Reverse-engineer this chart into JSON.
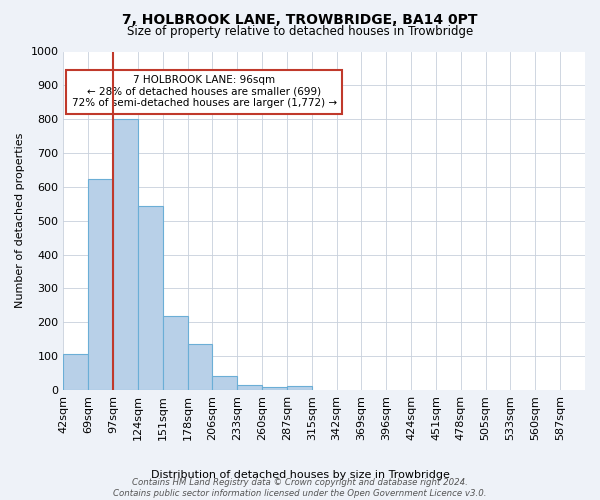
{
  "title": "7, HOLBROOK LANE, TROWBRIDGE, BA14 0PT",
  "subtitle": "Size of property relative to detached houses in Trowbridge",
  "xlabel": "Distribution of detached houses by size in Trowbridge",
  "ylabel": "Number of detached properties",
  "bar_values": [
    105,
    622,
    800,
    543,
    220,
    135,
    42,
    16,
    10,
    12
  ],
  "categories": [
    "42sqm",
    "69sqm",
    "97sqm",
    "124sqm",
    "151sqm",
    "178sqm",
    "206sqm",
    "233sqm",
    "260sqm",
    "287sqm",
    "315sqm",
    "342sqm",
    "369sqm",
    "396sqm",
    "424sqm",
    "451sqm",
    "478sqm",
    "505sqm",
    "533sqm",
    "560sqm",
    "587sqm"
  ],
  "bar_color": "#b8d0e8",
  "bar_edge_color": "#6baed6",
  "vline_color": "#c0392b",
  "annotation_text": "7 HOLBROOK LANE: 96sqm\n← 28% of detached houses are smaller (699)\n72% of semi-detached houses are larger (1,772) →",
  "annotation_box_color": "#ffffff",
  "annotation_box_edge": "#c0392b",
  "ylim": [
    0,
    1000
  ],
  "yticks": [
    0,
    100,
    200,
    300,
    400,
    500,
    600,
    700,
    800,
    900,
    1000
  ],
  "footer": "Contains HM Land Registry data © Crown copyright and database right 2024.\nContains public sector information licensed under the Open Government Licence v3.0.",
  "bg_color": "#eef2f8",
  "plot_bg_color": "#ffffff"
}
